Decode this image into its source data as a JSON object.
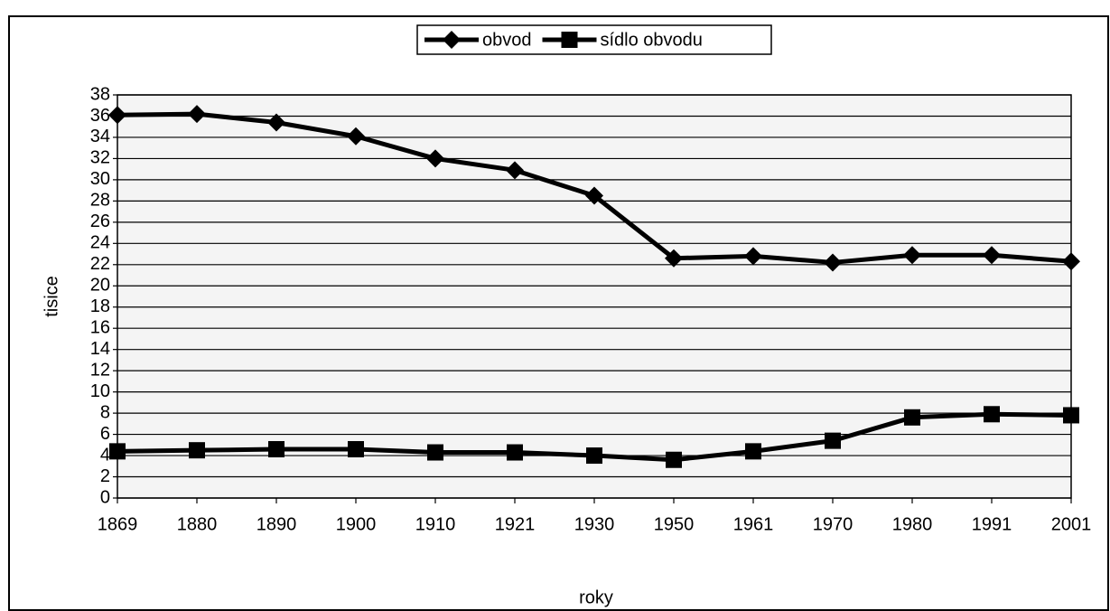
{
  "chart_data": {
    "type": "line",
    "categories": [
      "1869",
      "1880",
      "1890",
      "1900",
      "1910",
      "1921",
      "1930",
      "1950",
      "1961",
      "1970",
      "1980",
      "1991",
      "2001"
    ],
    "series": [
      {
        "name": "obvod",
        "color": "#000000",
        "marker": "diamond",
        "values": [
          36.1,
          36.2,
          35.4,
          34.1,
          32.0,
          30.9,
          28.5,
          22.6,
          22.8,
          22.2,
          22.9,
          22.9,
          22.3
        ]
      },
      {
        "name": "sídlo obvodu",
        "color": "#000000",
        "marker": "square",
        "values": [
          4.4,
          4.5,
          4.6,
          4.6,
          4.3,
          4.3,
          4.0,
          3.6,
          4.4,
          5.4,
          7.6,
          7.9,
          7.8
        ]
      }
    ],
    "xlabel": "roky",
    "ylabel": "tisice",
    "ylim": [
      0,
      38
    ],
    "yticks": [
      0,
      2,
      4,
      6,
      8,
      10,
      12,
      14,
      16,
      18,
      20,
      22,
      24,
      26,
      28,
      30,
      32,
      34,
      36,
      38
    ],
    "grid": true,
    "legend": "top"
  }
}
